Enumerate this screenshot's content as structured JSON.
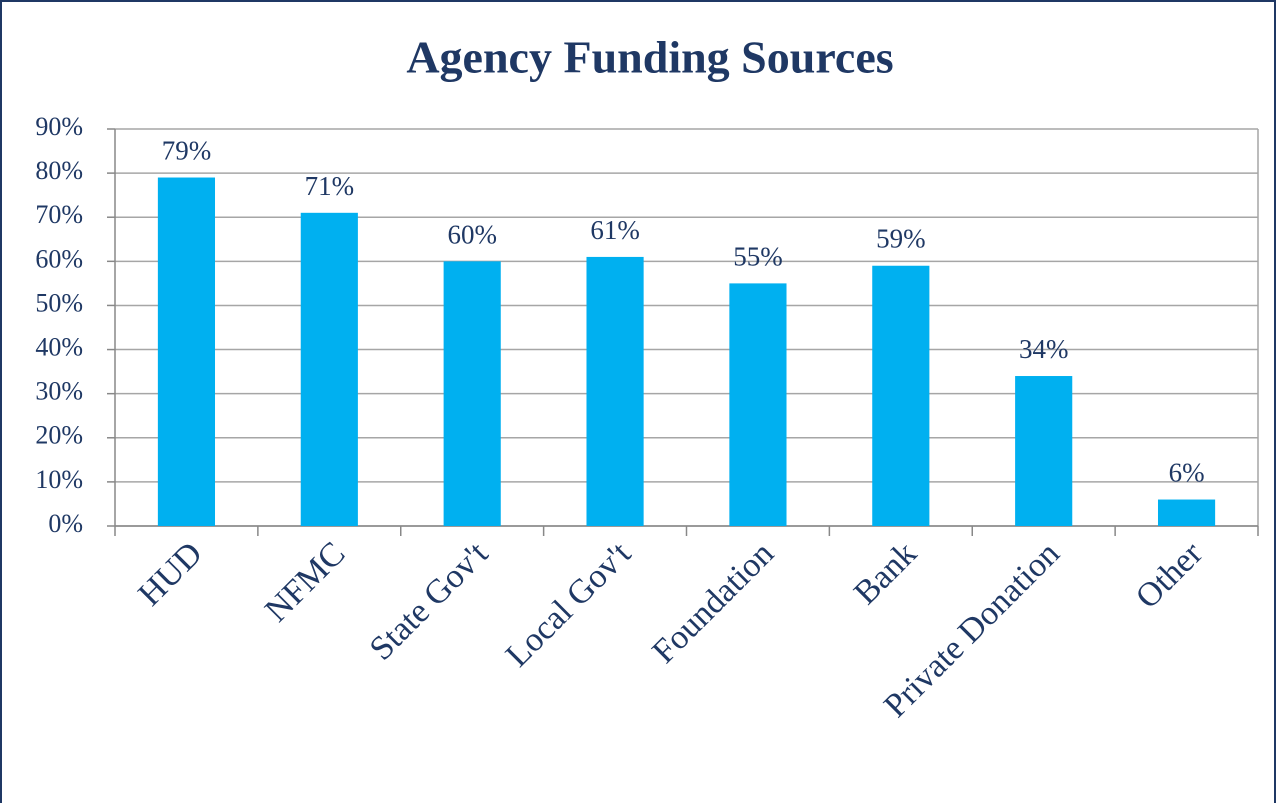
{
  "chart_data": {
    "type": "bar",
    "title": "Agency Funding Sources",
    "categories": [
      "HUD",
      "NFMC",
      "State Gov't",
      "Local Gov't",
      "Foundation",
      "Bank",
      "Private Donation",
      "Other"
    ],
    "values": [
      79,
      71,
      60,
      61,
      55,
      59,
      34,
      6
    ],
    "value_labels": [
      "79%",
      "71%",
      "60%",
      "61%",
      "55%",
      "59%",
      "34%",
      "6%"
    ],
    "color": "#00b0f0",
    "ylim": [
      0,
      90
    ],
    "yticks": [
      {
        "value": 0,
        "label": "0%"
      },
      {
        "value": 10,
        "label": "10%"
      },
      {
        "value": 20,
        "label": "20%"
      },
      {
        "value": 30,
        "label": "30%"
      },
      {
        "value": 40,
        "label": "40%"
      },
      {
        "value": 50,
        "label": "50%"
      },
      {
        "value": 60,
        "label": "60%"
      },
      {
        "value": 70,
        "label": "70%"
      },
      {
        "value": 80,
        "label": "80%"
      },
      {
        "value": 90,
        "label": "90%"
      }
    ],
    "grid": true
  }
}
